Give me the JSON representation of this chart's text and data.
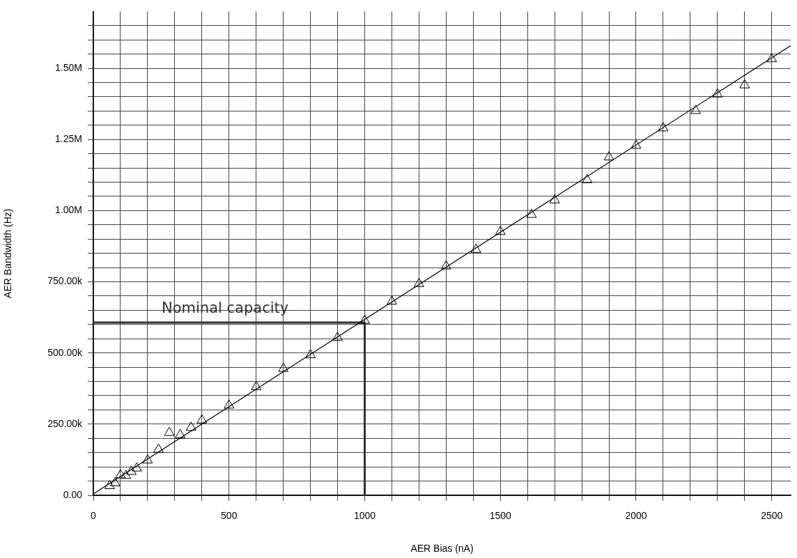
{
  "chart_data": {
    "type": "scatter",
    "xlabel": "AER Bias (nA)",
    "ylabel": "AER Bandwidth (Hz)",
    "xlim": [
      0,
      2570
    ],
    "ylim": [
      0,
      1700000
    ],
    "xticks": [
      0,
      {
        "value": 100,
        "label": null
      },
      {
        "value": 200,
        "label": null
      },
      {
        "value": 300,
        "label": null
      },
      {
        "value": 400,
        "label": null
      },
      500,
      {
        "value": 600,
        "label": null
      },
      {
        "value": 700,
        "label": null
      },
      {
        "value": 800,
        "label": null
      },
      {
        "value": 900,
        "label": null
      },
      1000,
      {
        "value": 1100,
        "label": null
      },
      {
        "value": 1200,
        "label": null
      },
      {
        "value": 1300,
        "label": null
      },
      {
        "value": 1400,
        "label": null
      },
      1500,
      {
        "value": 1600,
        "label": null
      },
      {
        "value": 1700,
        "label": null
      },
      {
        "value": 1800,
        "label": null
      },
      {
        "value": 1900,
        "label": null
      },
      2000,
      {
        "value": 2100,
        "label": null
      },
      {
        "value": 2200,
        "label": null
      },
      {
        "value": 2300,
        "label": null
      },
      {
        "value": 2400,
        "label": null
      },
      2500
    ],
    "yticks": [
      {
        "value": 0,
        "label": "0.00"
      },
      {
        "value": 50000,
        "label": null
      },
      {
        "value": 100000,
        "label": null
      },
      {
        "value": 150000,
        "label": null
      },
      {
        "value": 200000,
        "label": null
      },
      {
        "value": 250000,
        "label": "250.00k"
      },
      {
        "value": 300000,
        "label": null
      },
      {
        "value": 350000,
        "label": null
      },
      {
        "value": 400000,
        "label": null
      },
      {
        "value": 450000,
        "label": null
      },
      {
        "value": 500000,
        "label": "500.00k"
      },
      {
        "value": 550000,
        "label": null
      },
      {
        "value": 600000,
        "label": null
      },
      {
        "value": 650000,
        "label": null
      },
      {
        "value": 700000,
        "label": null
      },
      {
        "value": 750000,
        "label": "750.00k"
      },
      {
        "value": 800000,
        "label": null
      },
      {
        "value": 850000,
        "label": null
      },
      {
        "value": 900000,
        "label": null
      },
      {
        "value": 950000,
        "label": null
      },
      {
        "value": 1000000,
        "label": "1.00M"
      },
      {
        "value": 1050000,
        "label": null
      },
      {
        "value": 1100000,
        "label": null
      },
      {
        "value": 1150000,
        "label": null
      },
      {
        "value": 1200000,
        "label": null
      },
      {
        "value": 1250000,
        "label": "1.25M"
      },
      {
        "value": 1300000,
        "label": null
      },
      {
        "value": 1350000,
        "label": null
      },
      {
        "value": 1400000,
        "label": null
      },
      {
        "value": 1450000,
        "label": null
      },
      {
        "value": 1500000,
        "label": "1.50M"
      },
      {
        "value": 1550000,
        "label": null
      },
      {
        "value": 1600000,
        "label": null
      },
      {
        "value": 1650000,
        "label": null
      }
    ],
    "grid": true,
    "legend": false,
    "annotations": [
      "Nominal capacity"
    ],
    "series": [
      {
        "color": "#000000",
        "marker": "triangle",
        "x": [
          60,
          80,
          100,
          120,
          140,
          160,
          200,
          240,
          280,
          320,
          360,
          400,
          500,
          600,
          700,
          800,
          900,
          1000,
          1100,
          1200,
          1300,
          1410,
          1500,
          1615,
          1700,
          1820,
          1900,
          2000,
          2100,
          2220,
          2300,
          2400,
          2500
        ],
        "values": [
          33000,
          43000,
          71000,
          69000,
          83000,
          95000,
          123000,
          161000,
          220000,
          212000,
          238000,
          264000,
          316000,
          381000,
          445000,
          493000,
          554000,
          614000,
          681000,
          743000,
          805000,
          863000,
          926000,
          986000,
          1037000,
          1108000,
          1188000,
          1229000,
          1290000,
          1351000,
          1409000,
          1441000,
          1533000
        ]
      },
      {
        "type": "line",
        "color": "#000000",
        "marker": "none",
        "x": [
          0,
          2570
        ],
        "values": [
          5000,
          1580000
        ]
      },
      {
        "type": "line",
        "color": "#333333",
        "marker": "none",
        "x": [
          0,
          1000,
          1000
        ],
        "values": [
          607000,
          607000,
          0
        ]
      }
    ]
  }
}
